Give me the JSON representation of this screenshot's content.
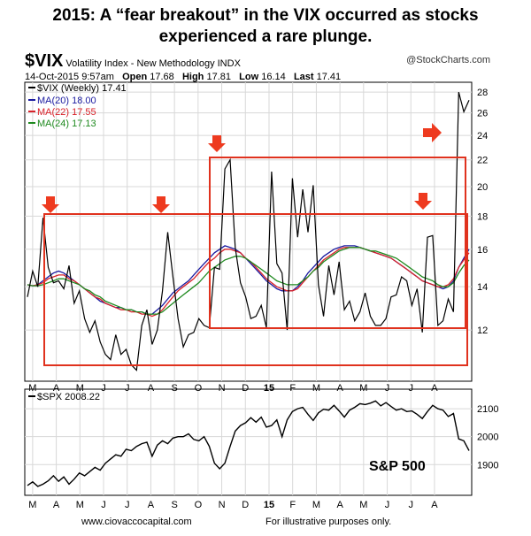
{
  "headline": {
    "line1": "2015:  A “fear breakout” in the VIX occurred as stocks",
    "line2": "experienced a rare plunge."
  },
  "header": {
    "symbol": "$VIX",
    "description": "Volatility Index - New Methodology  INDX",
    "brand": "@StockCharts.com",
    "date": "14-Oct-2015 9:57am",
    "open_label": "Open",
    "open": "17.68",
    "high_label": "High",
    "high": "17.81",
    "low_label": "Low",
    "low": "16.14",
    "last_label": "Last",
    "last": "17.41"
  },
  "footer": {
    "website": "www.ciovaccocapital.com",
    "note": "For illustrative purposes only."
  },
  "sp_label": "S&P 500",
  "colors": {
    "price": "#000000",
    "ma20": "#1a1aa0",
    "ma22": "#d8222a",
    "ma24": "#1f8a1f",
    "box": "#e0321e",
    "arrow": "#ee3a1f"
  },
  "chart_data": [
    {
      "type": "line",
      "name": "vix",
      "legend": [
        "$VIX (Weekly) 17.41",
        "MA(20) 18.00",
        "MA(22) 17.55",
        "MA(24) 17.13"
      ],
      "x_labels": [
        "M",
        "A",
        "M",
        "J",
        "J",
        "A",
        "S",
        "O",
        "N",
        "D",
        "15",
        "F",
        "M",
        "A",
        "M",
        "J",
        "J",
        "A"
      ],
      "y_ticks": [
        12,
        14,
        16,
        18,
        20,
        22,
        24,
        26,
        28
      ],
      "ylim": [
        10,
        29
      ],
      "log_scale": true,
      "grid": true,
      "series": [
        {
          "name": "$VIX (Weekly)",
          "values": [
            13.5,
            14.8,
            14.0,
            17.9,
            15.0,
            14.2,
            14.3,
            13.9,
            15.1,
            13.2,
            13.8,
            12.5,
            11.9,
            12.4,
            11.5,
            11.0,
            10.8,
            11.8,
            11.0,
            11.2,
            10.6,
            10.4,
            12.2,
            12.9,
            11.4,
            12.0,
            13.8,
            17.0,
            14.5,
            12.5,
            11.3,
            11.8,
            11.9,
            12.5,
            12.2,
            12.1,
            15.0,
            14.9,
            21.3,
            22.0,
            16.1,
            14.2,
            13.5,
            12.5,
            12.6,
            13.1,
            12.1,
            21.1,
            15.2,
            14.7,
            12.0,
            20.6,
            16.7,
            19.8,
            17.0,
            20.1,
            14.1,
            12.6,
            15.1,
            13.6,
            15.3,
            12.9,
            13.3,
            12.4,
            12.8,
            13.7,
            12.6,
            12.2,
            12.2,
            12.5,
            13.5,
            13.6,
            14.5,
            14.3,
            13.1,
            13.9,
            11.9,
            16.7,
            16.8,
            12.2,
            12.4,
            13.4,
            12.8,
            28.0,
            26.1,
            27.2
          ]
        },
        {
          "name": "MA(20)",
          "values": [
            14.1,
            14.05,
            14.1,
            14.3,
            14.5,
            14.7,
            14.8,
            14.7,
            14.5,
            14.3,
            14.1,
            13.9,
            13.7,
            13.5,
            13.3,
            13.2,
            13.1,
            13.0,
            13.0,
            12.9,
            12.9,
            12.8,
            12.8,
            12.7,
            12.7,
            12.9,
            13.1,
            13.4,
            13.7,
            13.9,
            14.1,
            14.3,
            14.6,
            14.9,
            15.2,
            15.5,
            15.8,
            16.0,
            16.2,
            16.1,
            16.0,
            15.8,
            15.5,
            15.2,
            14.9,
            14.6,
            14.3,
            14.1,
            13.9,
            13.8,
            13.8,
            13.8,
            14.0,
            14.3,
            14.7,
            15.0,
            15.3,
            15.6,
            15.8,
            16.0,
            16.1,
            16.2,
            16.2,
            16.2,
            16.1,
            16.0,
            15.9,
            15.8,
            15.7,
            15.6,
            15.5,
            15.3,
            15.1,
            14.9,
            14.7,
            14.5,
            14.3,
            14.2,
            14.1,
            14.0,
            13.9,
            14.0,
            14.3,
            15.0,
            15.5,
            16.0
          ]
        },
        {
          "name": "MA(22)",
          "values": [
            14.1,
            14.05,
            14.1,
            14.2,
            14.4,
            14.5,
            14.6,
            14.6,
            14.4,
            14.3,
            14.1,
            13.9,
            13.7,
            13.5,
            13.4,
            13.2,
            13.1,
            13.0,
            12.9,
            12.9,
            12.8,
            12.8,
            12.7,
            12.7,
            12.6,
            12.7,
            12.9,
            13.2,
            13.5,
            13.8,
            14.0,
            14.2,
            14.4,
            14.7,
            15.0,
            15.3,
            15.5,
            15.8,
            16.0,
            16.0,
            15.9,
            15.8,
            15.5,
            15.3,
            15.0,
            14.7,
            14.4,
            14.2,
            14.0,
            13.9,
            13.8,
            13.8,
            13.9,
            14.2,
            14.5,
            14.8,
            15.1,
            15.4,
            15.6,
            15.8,
            16.0,
            16.1,
            16.1,
            16.1,
            16.1,
            16.0,
            15.9,
            15.8,
            15.7,
            15.6,
            15.5,
            15.3,
            15.1,
            14.9,
            14.7,
            14.5,
            14.3,
            14.2,
            14.1,
            14.0,
            14.0,
            14.1,
            14.4,
            15.0,
            15.4,
            15.8
          ]
        },
        {
          "name": "MA(24)",
          "values": [
            14.1,
            14.05,
            14.05,
            14.1,
            14.2,
            14.3,
            14.4,
            14.4,
            14.3,
            14.2,
            14.1,
            13.9,
            13.8,
            13.6,
            13.5,
            13.3,
            13.2,
            13.1,
            13.0,
            12.9,
            12.9,
            12.8,
            12.8,
            12.7,
            12.7,
            12.7,
            12.8,
            13.0,
            13.2,
            13.4,
            13.6,
            13.8,
            14.0,
            14.2,
            14.5,
            14.8,
            15.0,
            15.2,
            15.4,
            15.5,
            15.6,
            15.6,
            15.5,
            15.3,
            15.1,
            14.9,
            14.7,
            14.5,
            14.3,
            14.2,
            14.1,
            14.1,
            14.1,
            14.3,
            14.5,
            14.8,
            15.0,
            15.3,
            15.5,
            15.7,
            15.9,
            16.0,
            16.1,
            16.1,
            16.1,
            16.0,
            15.9,
            15.9,
            15.8,
            15.7,
            15.6,
            15.5,
            15.3,
            15.1,
            14.9,
            14.7,
            14.5,
            14.4,
            14.3,
            14.1,
            14.0,
            14.0,
            14.2,
            14.7,
            15.1,
            15.4
          ]
        }
      ]
    },
    {
      "type": "line",
      "name": "spx",
      "legend": [
        "$SPX 2008.22"
      ],
      "x_labels": [
        "M",
        "A",
        "M",
        "J",
        "J",
        "A",
        "S",
        "O",
        "N",
        "D",
        "15",
        "F",
        "M",
        "A",
        "M",
        "J",
        "J",
        "A"
      ],
      "y_ticks": [
        1900,
        2000,
        2100
      ],
      "ylim": [
        1790,
        2170
      ],
      "grid": true,
      "series": [
        {
          "name": "$SPX",
          "values": [
            1825,
            1838,
            1822,
            1830,
            1842,
            1860,
            1840,
            1856,
            1830,
            1848,
            1870,
            1860,
            1875,
            1890,
            1880,
            1905,
            1920,
            1935,
            1930,
            1955,
            1950,
            1965,
            1975,
            1980,
            1930,
            1970,
            1985,
            1975,
            1995,
            2000,
            2000,
            2010,
            1990,
            1985,
            2000,
            1965,
            1905,
            1885,
            1905,
            1965,
            2020,
            2040,
            2050,
            2068,
            2052,
            2070,
            2034,
            2040,
            2060,
            2000,
            2060,
            2090,
            2100,
            2105,
            2080,
            2058,
            2085,
            2098,
            2095,
            2112,
            2092,
            2070,
            2095,
            2105,
            2118,
            2115,
            2120,
            2128,
            2110,
            2122,
            2108,
            2095,
            2100,
            2090,
            2092,
            2080,
            2065,
            2090,
            2112,
            2100,
            2095,
            2072,
            2083,
            1992,
            1985,
            1950
          ]
        }
      ]
    }
  ]
}
